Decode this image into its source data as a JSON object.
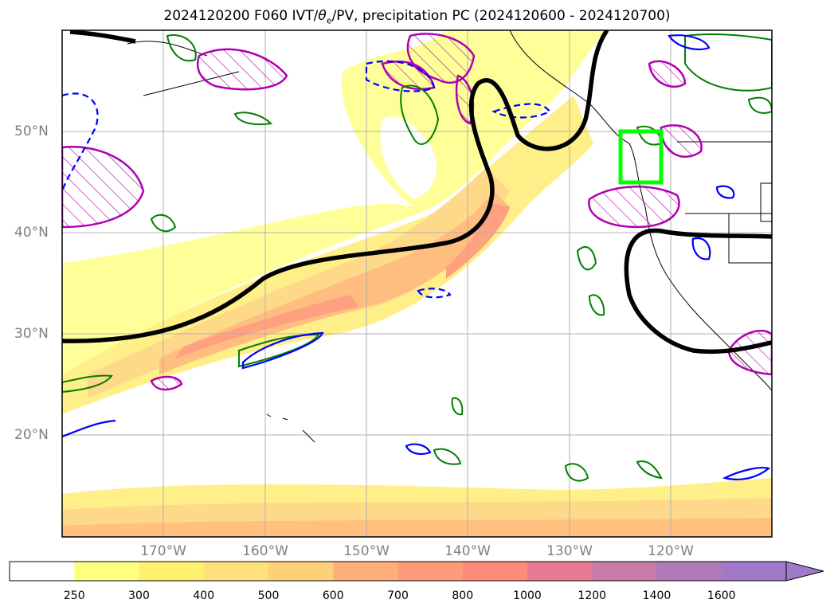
{
  "title": {
    "prefix": "2024120200 F060 IVT/",
    "theta": "θ",
    "sub": "e",
    "suffix": "/PV, precipitation PC (2024120600 - 2024120700)"
  },
  "lat_labels": [
    "50°N",
    "40°N",
    "30°N",
    "20°N"
  ],
  "lon_labels": [
    "170°W",
    "160°W",
    "150°W",
    "140°W",
    "130°W",
    "120°W"
  ],
  "colorbar": {
    "ticks": [
      "250",
      "300",
      "400",
      "500",
      "600",
      "700",
      "800",
      "1000",
      "1200",
      "1400",
      "1600"
    ],
    "colors": [
      "#ffffff",
      "#ffff80",
      "#fff070",
      "#ffe07a",
      "#ffd07a",
      "#ffb07a",
      "#ff9a7a",
      "#ff8a7a",
      "#e67a90",
      "#c87aa8",
      "#b07ab8",
      "#a07ac8"
    ],
    "extend": "max"
  },
  "overlay_colors": {
    "contour_pv": "#000000",
    "theta_e_positive": "#008000",
    "theta_e_negative": "#0000ff",
    "precip_pc": "#b000b0",
    "target_box": "#00ff00"
  }
}
